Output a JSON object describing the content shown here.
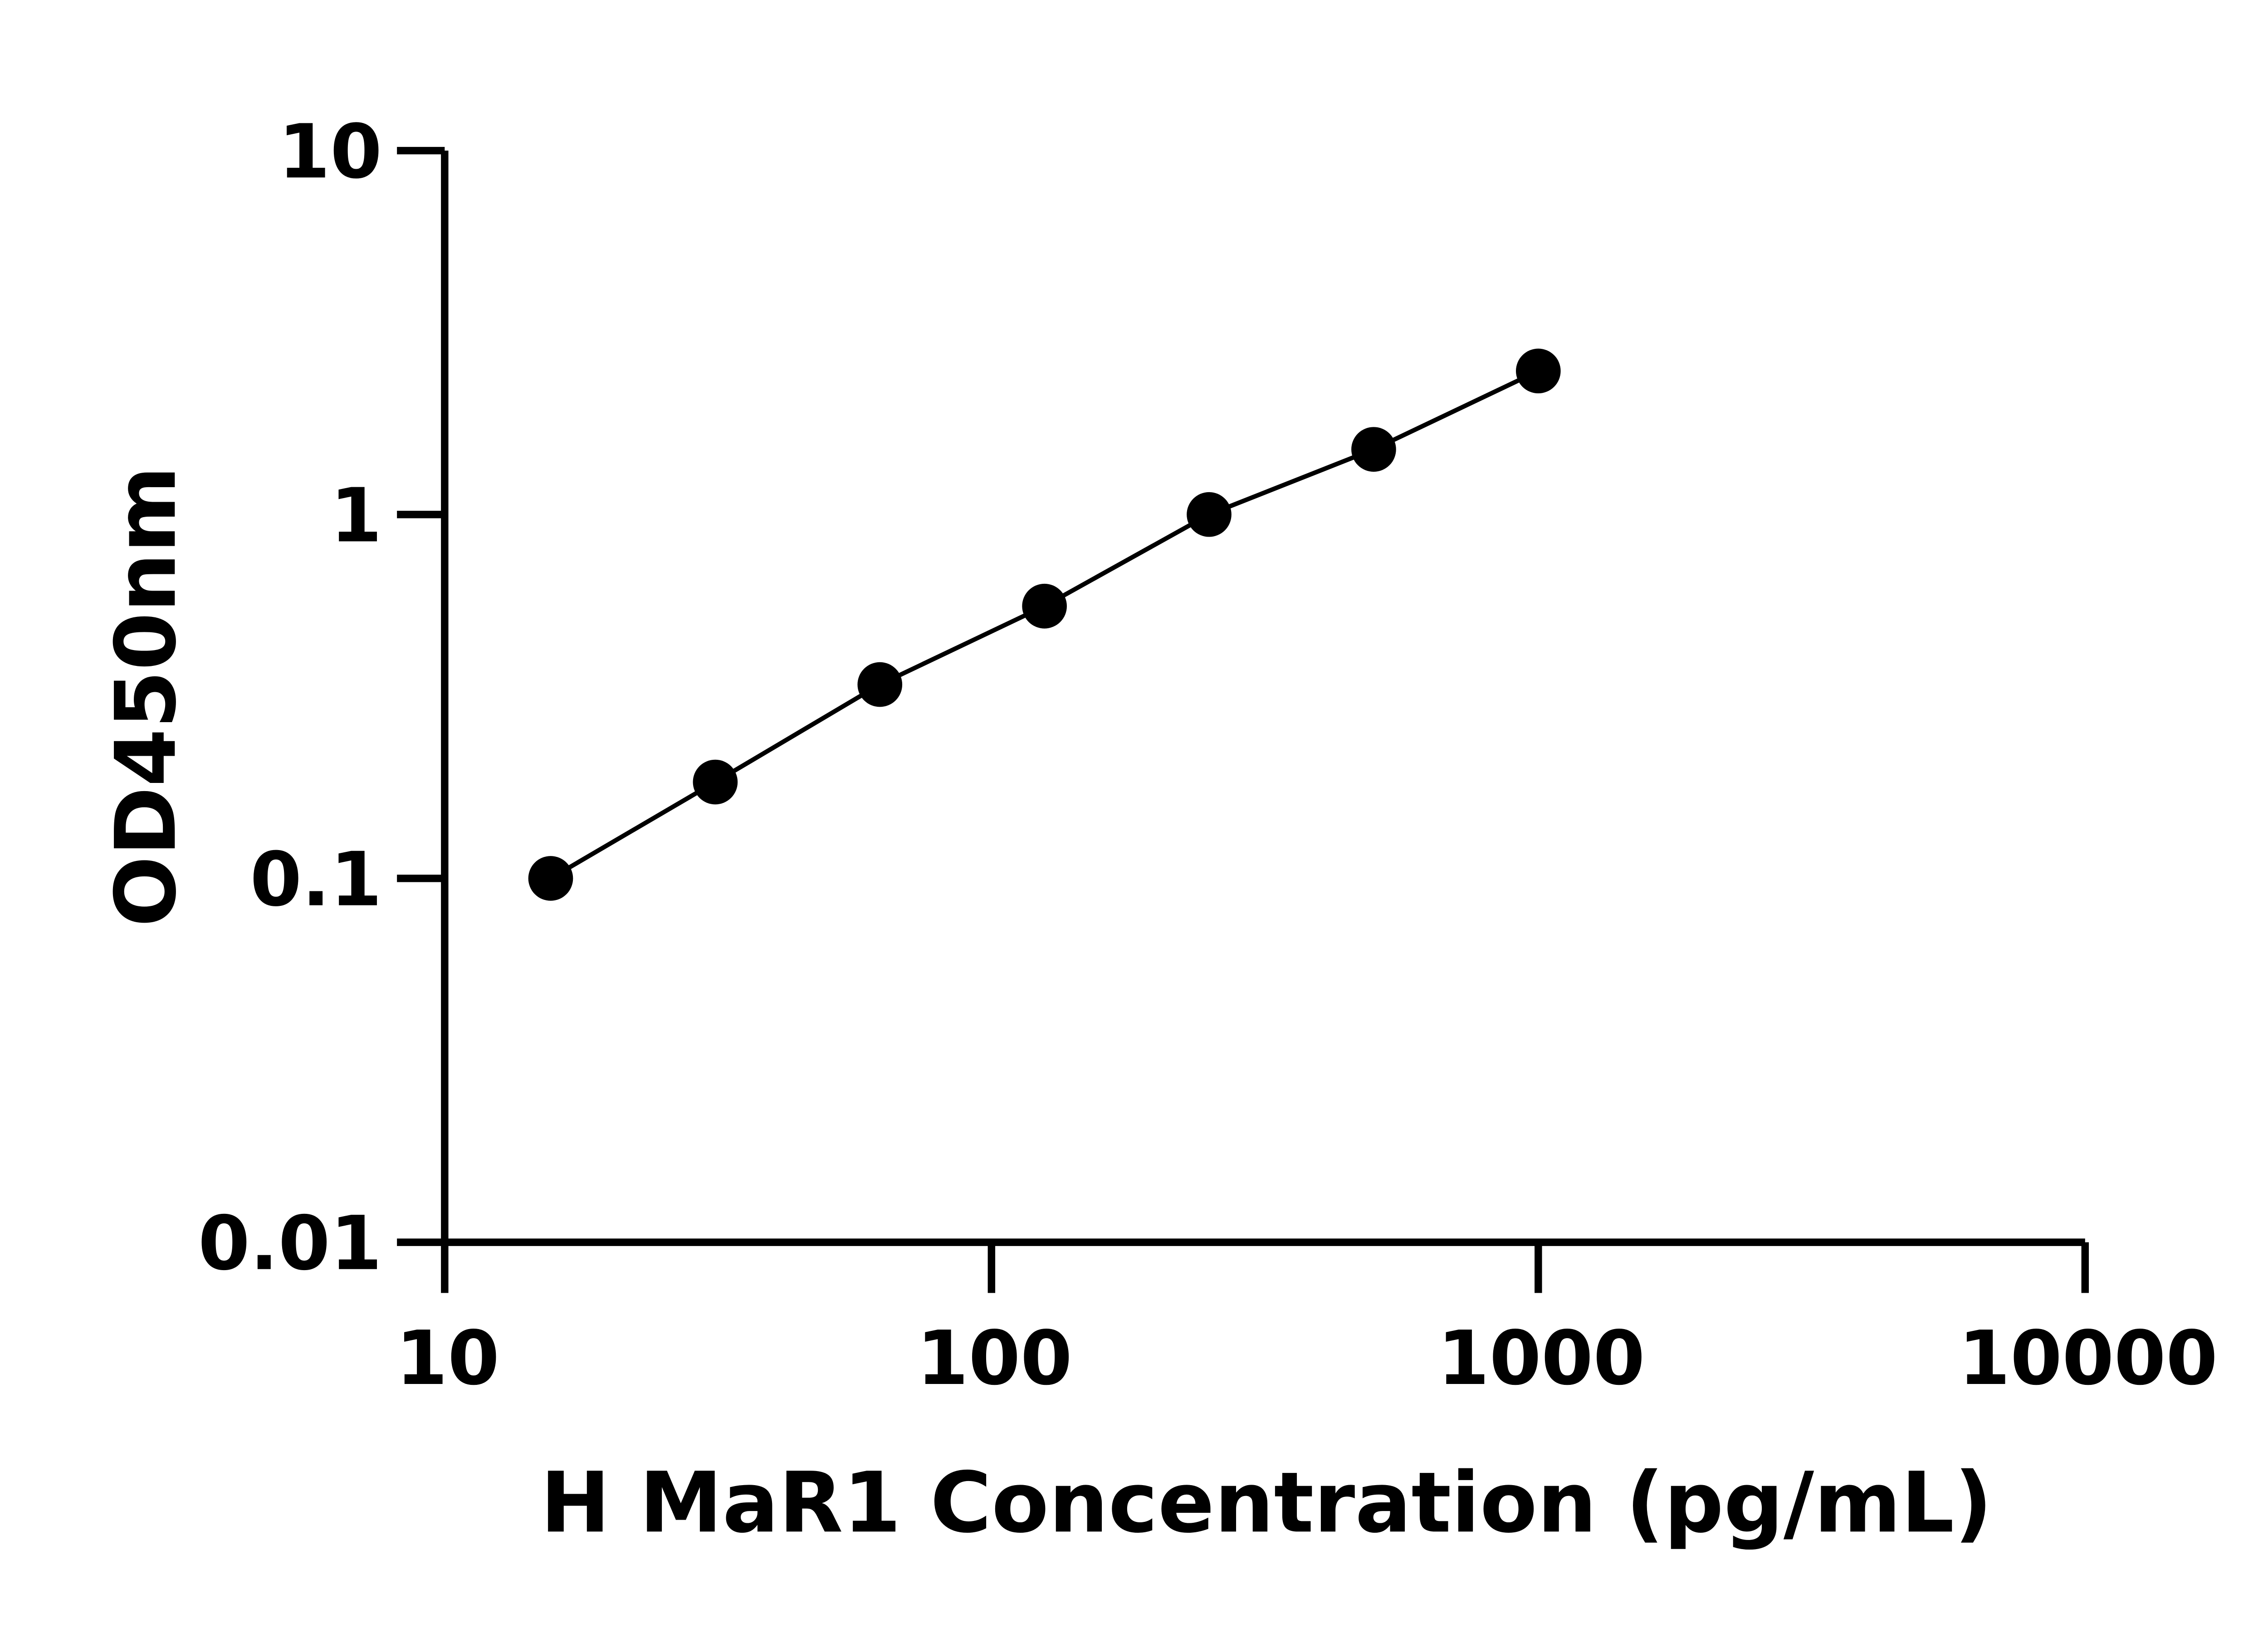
{
  "chart_data": {
    "type": "scatter",
    "title": "",
    "xlabel": "H MaR1 Concentration (pg/mL)",
    "ylabel": "OD450nm",
    "xscale": "log",
    "yscale": "log",
    "xlim": [
      10,
      10000
    ],
    "ylim": [
      0.01,
      10
    ],
    "xticks": [
      "10",
      "100",
      "1000",
      "10000"
    ],
    "yticks": [
      "0.01",
      "0.1",
      "1",
      "10"
    ],
    "grid": false,
    "connected_line": true,
    "colors": {
      "points": "#000000",
      "line": "#000000",
      "axes": "#000000"
    },
    "series": [
      {
        "x": [
          15.625,
          31.25,
          62.5,
          125,
          250,
          500,
          1000
        ],
        "y": [
          0.1,
          0.184,
          0.341,
          0.56,
          1.0,
          1.51,
          2.48
        ]
      }
    ]
  }
}
